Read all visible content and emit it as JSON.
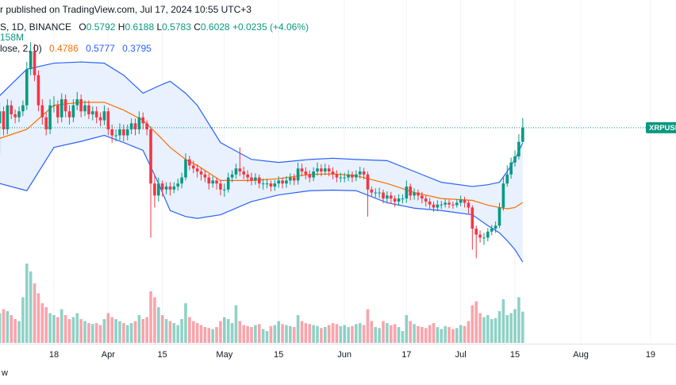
{
  "chart_data": {
    "type": "candlestick",
    "title": "r published on TradingView.com, Jul 17, 2024 10:55 UTC+3",
    "symbol": "S, 1D, BINANCE",
    "ohlc_labels": [
      "O",
      "H",
      "L",
      "C"
    ],
    "change": "+0.0235 (+4.06%)",
    "volume_label": "158M",
    "indicator": "lose, 2, 0)",
    "symbol_tag": "XRPUSD",
    "footer": "w",
    "x": [
      "2024-03-04",
      "2024-03-05",
      "2024-03-06",
      "2024-03-07",
      "2024-03-08",
      "2024-03-09",
      "2024-03-10",
      "2024-03-11",
      "2024-03-12",
      "2024-03-13",
      "2024-03-14",
      "2024-03-15",
      "2024-03-16",
      "2024-03-17",
      "2024-03-18",
      "2024-03-19",
      "2024-03-20",
      "2024-03-21",
      "2024-03-22",
      "2024-03-23",
      "2024-03-24",
      "2024-03-25",
      "2024-03-26",
      "2024-03-27",
      "2024-03-28",
      "2024-03-29",
      "2024-03-30",
      "2024-03-31",
      "2024-04-01",
      "2024-04-02",
      "2024-04-03",
      "2024-04-04",
      "2024-04-05",
      "2024-04-06",
      "2024-04-07",
      "2024-04-08",
      "2024-04-09",
      "2024-04-10",
      "2024-04-11",
      "2024-04-12",
      "2024-04-13",
      "2024-04-14",
      "2024-04-15",
      "2024-04-16",
      "2024-04-17",
      "2024-04-18",
      "2024-04-19",
      "2024-04-20",
      "2024-04-21",
      "2024-04-22",
      "2024-04-23",
      "2024-04-24",
      "2024-04-25",
      "2024-04-26",
      "2024-04-27",
      "2024-04-28",
      "2024-04-29",
      "2024-04-30",
      "2024-05-01",
      "2024-05-02",
      "2024-05-03",
      "2024-05-04",
      "2024-05-05",
      "2024-05-06",
      "2024-05-07",
      "2024-05-08",
      "2024-05-09",
      "2024-05-10",
      "2024-05-11",
      "2024-05-12",
      "2024-05-13",
      "2024-05-14",
      "2024-05-15",
      "2024-05-16",
      "2024-05-17",
      "2024-05-18",
      "2024-05-19",
      "2024-05-20",
      "2024-05-21",
      "2024-05-22",
      "2024-05-23",
      "2024-05-24",
      "2024-05-25",
      "2024-05-26",
      "2024-05-27",
      "2024-05-28",
      "2024-05-29",
      "2024-05-30",
      "2024-05-31",
      "2024-06-01",
      "2024-06-02",
      "2024-06-03",
      "2024-06-04",
      "2024-06-05",
      "2024-06-06",
      "2024-06-07",
      "2024-06-08",
      "2024-06-09",
      "2024-06-10",
      "2024-06-11",
      "2024-06-12",
      "2024-06-13",
      "2024-06-14",
      "2024-06-15",
      "2024-06-16",
      "2024-06-17",
      "2024-06-18",
      "2024-06-19",
      "2024-06-20",
      "2024-06-21",
      "2024-06-22",
      "2024-06-23",
      "2024-06-24",
      "2024-06-25",
      "2024-06-26",
      "2024-06-27",
      "2024-06-28",
      "2024-06-29",
      "2024-06-30",
      "2024-07-01",
      "2024-07-02",
      "2024-07-03",
      "2024-07-04",
      "2024-07-05",
      "2024-07-06",
      "2024-07-07",
      "2024-07-08",
      "2024-07-09",
      "2024-07-10",
      "2024-07-11",
      "2024-07-12",
      "2024-07-13",
      "2024-07-14",
      "2024-07-15",
      "2024-07-16",
      "2024-07-17"
    ],
    "open": [
      0.61,
      0.63,
      0.6,
      0.64,
      0.625,
      0.62,
      0.63,
      0.64,
      0.7,
      0.73,
      0.69,
      0.64,
      0.62,
      0.6,
      0.64,
      0.64,
      0.62,
      0.65,
      0.63,
      0.62,
      0.64,
      0.65,
      0.63,
      0.64,
      0.625,
      0.63,
      0.62,
      0.615,
      0.63,
      0.6,
      0.59,
      0.59,
      0.6,
      0.59,
      0.6,
      0.61,
      0.6,
      0.62,
      0.61,
      0.6,
      0.51,
      0.49,
      0.51,
      0.5,
      0.505,
      0.5,
      0.505,
      0.51,
      0.52,
      0.55,
      0.54,
      0.535,
      0.53,
      0.525,
      0.52,
      0.51,
      0.515,
      0.51,
      0.5,
      0.5,
      0.52,
      0.525,
      0.535,
      0.53,
      0.525,
      0.52,
      0.515,
      0.52,
      0.51,
      0.51,
      0.51,
      0.505,
      0.51,
      0.515,
      0.51,
      0.515,
      0.52,
      0.515,
      0.535,
      0.53,
      0.525,
      0.52,
      0.53,
      0.535,
      0.53,
      0.535,
      0.53,
      0.525,
      0.52,
      0.52,
      0.52,
      0.525,
      0.52,
      0.525,
      0.53,
      0.525,
      0.5,
      0.495,
      0.495,
      0.495,
      0.485,
      0.49,
      0.485,
      0.48,
      0.485,
      0.485,
      0.505,
      0.49,
      0.495,
      0.49,
      0.485,
      0.48,
      0.475,
      0.47,
      0.475,
      0.475,
      0.478,
      0.475,
      0.474,
      0.478,
      0.483,
      0.478,
      0.47,
      0.435,
      0.425,
      0.42,
      0.42,
      0.43,
      0.435,
      0.44,
      0.47,
      0.51,
      0.525,
      0.545,
      0.555,
      0.5792
    ],
    "high": [
      0.645,
      0.638,
      0.65,
      0.648,
      0.633,
      0.638,
      0.648,
      0.712,
      0.745,
      0.742,
      0.698,
      0.65,
      0.628,
      0.65,
      0.655,
      0.648,
      0.66,
      0.658,
      0.64,
      0.65,
      0.662,
      0.658,
      0.648,
      0.648,
      0.638,
      0.638,
      0.628,
      0.64,
      0.636,
      0.608,
      0.6,
      0.61,
      0.608,
      0.608,
      0.618,
      0.618,
      0.63,
      0.628,
      0.615,
      0.605,
      0.525,
      0.52,
      0.515,
      0.512,
      0.512,
      0.512,
      0.518,
      0.528,
      0.56,
      0.556,
      0.548,
      0.542,
      0.537,
      0.532,
      0.526,
      0.522,
      0.52,
      0.516,
      0.51,
      0.528,
      0.532,
      0.543,
      0.57,
      0.538,
      0.532,
      0.528,
      0.527,
      0.525,
      0.518,
      0.518,
      0.515,
      0.516,
      0.522,
      0.52,
      0.522,
      0.527,
      0.526,
      0.545,
      0.543,
      0.537,
      0.532,
      0.537,
      0.545,
      0.542,
      0.543,
      0.541,
      0.537,
      0.532,
      0.528,
      0.528,
      0.532,
      0.53,
      0.532,
      0.538,
      0.536,
      0.53,
      0.505,
      0.502,
      0.503,
      0.5,
      0.497,
      0.496,
      0.49,
      0.492,
      0.492,
      0.515,
      0.51,
      0.502,
      0.5,
      0.496,
      0.49,
      0.486,
      0.48,
      0.482,
      0.481,
      0.484,
      0.483,
      0.48,
      0.484,
      0.49,
      0.488,
      0.482,
      0.474,
      0.44,
      0.432,
      0.428,
      0.436,
      0.441,
      0.447,
      0.478,
      0.52,
      0.54,
      0.553,
      0.565,
      0.592,
      0.6188
    ],
    "low": [
      0.56,
      0.59,
      0.592,
      0.617,
      0.61,
      0.612,
      0.622,
      0.632,
      0.69,
      0.68,
      0.63,
      0.608,
      0.59,
      0.592,
      0.628,
      0.61,
      0.612,
      0.62,
      0.608,
      0.612,
      0.632,
      0.62,
      0.622,
      0.617,
      0.615,
      0.61,
      0.605,
      0.607,
      0.59,
      0.578,
      0.58,
      0.582,
      0.58,
      0.582,
      0.592,
      0.59,
      0.592,
      0.6,
      0.59,
      0.42,
      0.47,
      0.48,
      0.488,
      0.492,
      0.49,
      0.494,
      0.498,
      0.502,
      0.515,
      0.532,
      0.527,
      0.52,
      0.515,
      0.512,
      0.5,
      0.503,
      0.5,
      0.49,
      0.488,
      0.495,
      0.512,
      0.518,
      0.522,
      0.517,
      0.512,
      0.507,
      0.508,
      0.502,
      0.5,
      0.502,
      0.497,
      0.498,
      0.503,
      0.502,
      0.503,
      0.508,
      0.507,
      0.508,
      0.522,
      0.517,
      0.512,
      0.514,
      0.523,
      0.522,
      0.524,
      0.522,
      0.517,
      0.512,
      0.512,
      0.512,
      0.514,
      0.512,
      0.514,
      0.518,
      0.517,
      0.455,
      0.488,
      0.487,
      0.486,
      0.477,
      0.478,
      0.476,
      0.471,
      0.473,
      0.477,
      0.478,
      0.482,
      0.483,
      0.482,
      0.477,
      0.472,
      0.468,
      0.463,
      0.464,
      0.468,
      0.47,
      0.469,
      0.468,
      0.47,
      0.472,
      0.47,
      0.46,
      0.4,
      0.386,
      0.412,
      0.408,
      0.414,
      0.424,
      0.428,
      0.436,
      0.465,
      0.505,
      0.518,
      0.538,
      0.55,
      0.5783
    ],
    "close": [
      0.63,
      0.6,
      0.64,
      0.625,
      0.62,
      0.63,
      0.64,
      0.7,
      0.73,
      0.69,
      0.64,
      0.62,
      0.6,
      0.64,
      0.64,
      0.62,
      0.65,
      0.63,
      0.62,
      0.64,
      0.65,
      0.63,
      0.64,
      0.625,
      0.63,
      0.62,
      0.615,
      0.63,
      0.6,
      0.59,
      0.59,
      0.6,
      0.59,
      0.6,
      0.61,
      0.6,
      0.62,
      0.61,
      0.6,
      0.51,
      0.49,
      0.51,
      0.5,
      0.505,
      0.5,
      0.505,
      0.51,
      0.52,
      0.55,
      0.54,
      0.535,
      0.53,
      0.525,
      0.52,
      0.51,
      0.515,
      0.51,
      0.5,
      0.5,
      0.52,
      0.525,
      0.535,
      0.53,
      0.525,
      0.52,
      0.515,
      0.52,
      0.51,
      0.51,
      0.51,
      0.505,
      0.51,
      0.515,
      0.51,
      0.515,
      0.52,
      0.515,
      0.535,
      0.53,
      0.525,
      0.52,
      0.53,
      0.535,
      0.53,
      0.535,
      0.53,
      0.525,
      0.52,
      0.52,
      0.52,
      0.525,
      0.52,
      0.525,
      0.53,
      0.525,
      0.5,
      0.495,
      0.495,
      0.495,
      0.485,
      0.49,
      0.485,
      0.48,
      0.485,
      0.485,
      0.505,
      0.49,
      0.495,
      0.49,
      0.485,
      0.48,
      0.475,
      0.47,
      0.475,
      0.475,
      0.478,
      0.475,
      0.474,
      0.478,
      0.483,
      0.478,
      0.47,
      0.435,
      0.425,
      0.42,
      0.42,
      0.43,
      0.435,
      0.44,
      0.47,
      0.51,
      0.525,
      0.545,
      0.555,
      0.5792,
      0.6028
    ],
    "volume": [
      150,
      170,
      160,
      140,
      120,
      110,
      230,
      400,
      360,
      300,
      250,
      200,
      180,
      150,
      140,
      130,
      170,
      140,
      120,
      130,
      150,
      120,
      110,
      100,
      95,
      100,
      90,
      120,
      150,
      130,
      120,
      110,
      100,
      90,
      100,
      110,
      140,
      120,
      130,
      260,
      230,
      180,
      140,
      120,
      110,
      100,
      90,
      120,
      200,
      130,
      110,
      100,
      90,
      80,
      75,
      70,
      80,
      110,
      130,
      120,
      100,
      190,
      110,
      90,
      85,
      80,
      90,
      95,
      70,
      60,
      85,
      90,
      110,
      95,
      90,
      85,
      80,
      140,
      110,
      100,
      95,
      90,
      85,
      75,
      80,
      90,
      100,
      95,
      85,
      90,
      80,
      85,
      95,
      100,
      90,
      170,
      110,
      80,
      75,
      110,
      100,
      90,
      95,
      80,
      60,
      140,
      110,
      95,
      85,
      80,
      75,
      90,
      100,
      80,
      70,
      85,
      80,
      70,
      75,
      90,
      85,
      110,
      190,
      210,
      150,
      130,
      140,
      120,
      125,
      160,
      220,
      140,
      150,
      170,
      230,
      158
    ],
    "bands": {
      "x": [
        "2024-03-04",
        "2024-03-11",
        "2024-03-18",
        "2024-03-25",
        "2024-03-31",
        "2024-04-05",
        "2024-04-10",
        "2024-04-14",
        "2024-04-17",
        "2024-04-21",
        "2024-04-24",
        "2024-04-30",
        "2024-05-08",
        "2024-05-15",
        "2024-05-23",
        "2024-05-29",
        "2024-06-04",
        "2024-06-12",
        "2024-06-19",
        "2024-06-26",
        "2024-07-04",
        "2024-07-08",
        "2024-07-11",
        "2024-07-13",
        "2024-07-15",
        "2024-07-17"
      ],
      "basis": [
        0.585,
        0.6,
        0.64,
        0.645,
        0.645,
        0.632,
        0.615,
        0.59,
        0.57,
        0.55,
        0.54,
        0.515,
        0.515,
        0.518,
        0.525,
        0.526,
        0.523,
        0.51,
        0.495,
        0.485,
        0.482,
        0.474,
        0.47,
        0.468,
        0.47,
        0.4786
      ],
      "upper": [
        0.656,
        0.7,
        0.71,
        0.712,
        0.71,
        0.69,
        0.66,
        0.672,
        0.68,
        0.66,
        0.64,
        0.578,
        0.55,
        0.545,
        0.55,
        0.552,
        0.55,
        0.548,
        0.53,
        0.512,
        0.505,
        0.508,
        0.512,
        0.53,
        0.55,
        0.5777
      ],
      "lower": [
        0.51,
        0.498,
        0.57,
        0.58,
        0.59,
        0.578,
        0.565,
        0.51,
        0.465,
        0.455,
        0.452,
        0.458,
        0.48,
        0.491,
        0.498,
        0.499,
        0.498,
        0.478,
        0.469,
        0.465,
        0.458,
        0.44,
        0.428,
        0.415,
        0.4,
        0.3795
      ],
      "basis_color": "#ff6d00",
      "band_color": "#2962ff",
      "fill": "#e8f1fd"
    },
    "ylim": [
      0.245,
      0.815
    ],
    "volume_ylim": [
      0,
      1728
    ],
    "xticks": [
      {
        "value": "2024-03-18",
        "label": "18"
      },
      {
        "value": "2024-04-01",
        "label": "Apr"
      },
      {
        "value": "2024-04-15",
        "label": "15"
      },
      {
        "value": "2024-05-01",
        "label": "May"
      },
      {
        "value": "2024-05-15",
        "label": "15"
      },
      {
        "value": "2024-06-01",
        "label": "Jun"
      },
      {
        "value": "2024-06-17",
        "label": "17"
      },
      {
        "value": "2024-07-01",
        "label": "Jul"
      },
      {
        "value": "2024-07-15",
        "label": "15"
      },
      {
        "value": "2024-08-01",
        "label": "Aug"
      },
      {
        "value": "2024-08-19",
        "label": "19"
      }
    ],
    "up_color": "#089981",
    "down_color": "#f23645",
    "grid": true
  }
}
